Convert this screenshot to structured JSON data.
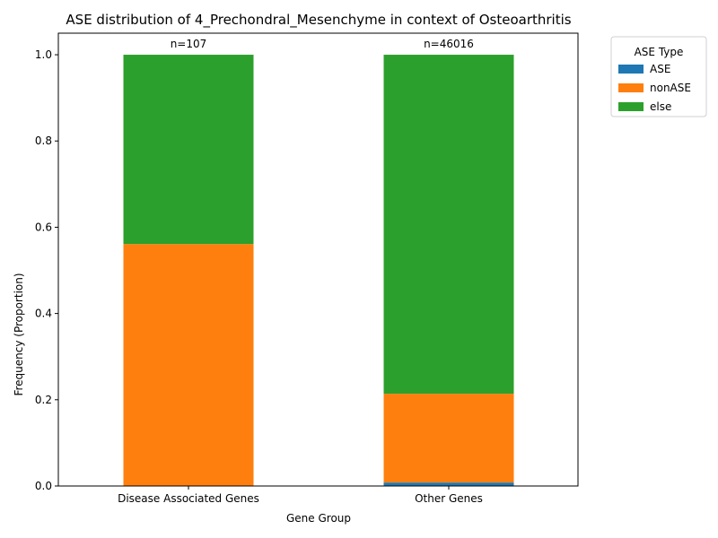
{
  "chart_data": {
    "type": "bar",
    "stacked": true,
    "title": "ASE distribution of 4_Prechondral_Mesenchyme in context of Osteoarthritis",
    "xlabel": "Gene Group",
    "ylabel": "Frequency (Proportion)",
    "ylim": [
      0,
      1.05
    ],
    "yticks": [
      "0.0",
      "0.2",
      "0.4",
      "0.6",
      "0.8",
      "1.0"
    ],
    "grid": false,
    "categories": [
      "Disease Associated Genes",
      "Other Genes"
    ],
    "annotations": [
      "n=107",
      "n=46016"
    ],
    "series": [
      {
        "name": "ASE",
        "color": "#1f77b4",
        "values": [
          0.0,
          0.008
        ]
      },
      {
        "name": "nonASE",
        "color": "#ff7f0e",
        "values": [
          0.561,
          0.206
        ]
      },
      {
        "name": "else",
        "color": "#2ca02c",
        "values": [
          0.439,
          0.786
        ]
      }
    ],
    "legend": {
      "title": "ASE Type",
      "placement": "outside-top-right"
    }
  }
}
